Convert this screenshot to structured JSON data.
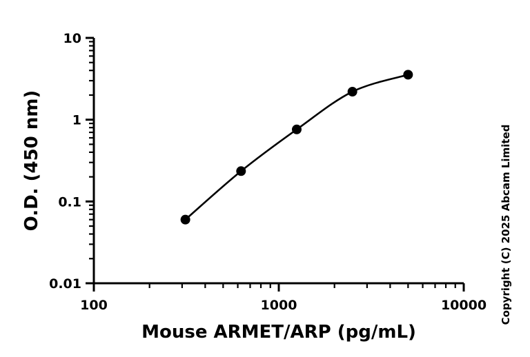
{
  "chart_data": {
    "type": "scatter",
    "title": "",
    "xlabel": "Mouse ARMET/ARP (pg/mL)",
    "ylabel": "O.D. (450 nm)",
    "xscale": "log",
    "yscale": "log",
    "xlim": [
      100,
      10000
    ],
    "ylim": [
      0.01,
      10
    ],
    "x_ticks": [
      100,
      1000,
      10000
    ],
    "x_tick_labels": [
      "100",
      "1000",
      "10000"
    ],
    "y_ticks": [
      0.01,
      0.1,
      1,
      10
    ],
    "y_tick_labels": [
      "0.01",
      "0.1",
      "1",
      "10"
    ],
    "grid": false,
    "legend": "none",
    "fit": "smooth curve",
    "series": [
      {
        "x": [
          312.5,
          625,
          1250,
          2500,
          5000
        ],
        "y": [
          0.06,
          0.235,
          0.76,
          2.2,
          3.55
        ]
      }
    ]
  },
  "copyright": "Copyright (C) 2025 Abcam Limited",
  "colors": {
    "ink": "#000000",
    "background": "#ffffff"
  }
}
